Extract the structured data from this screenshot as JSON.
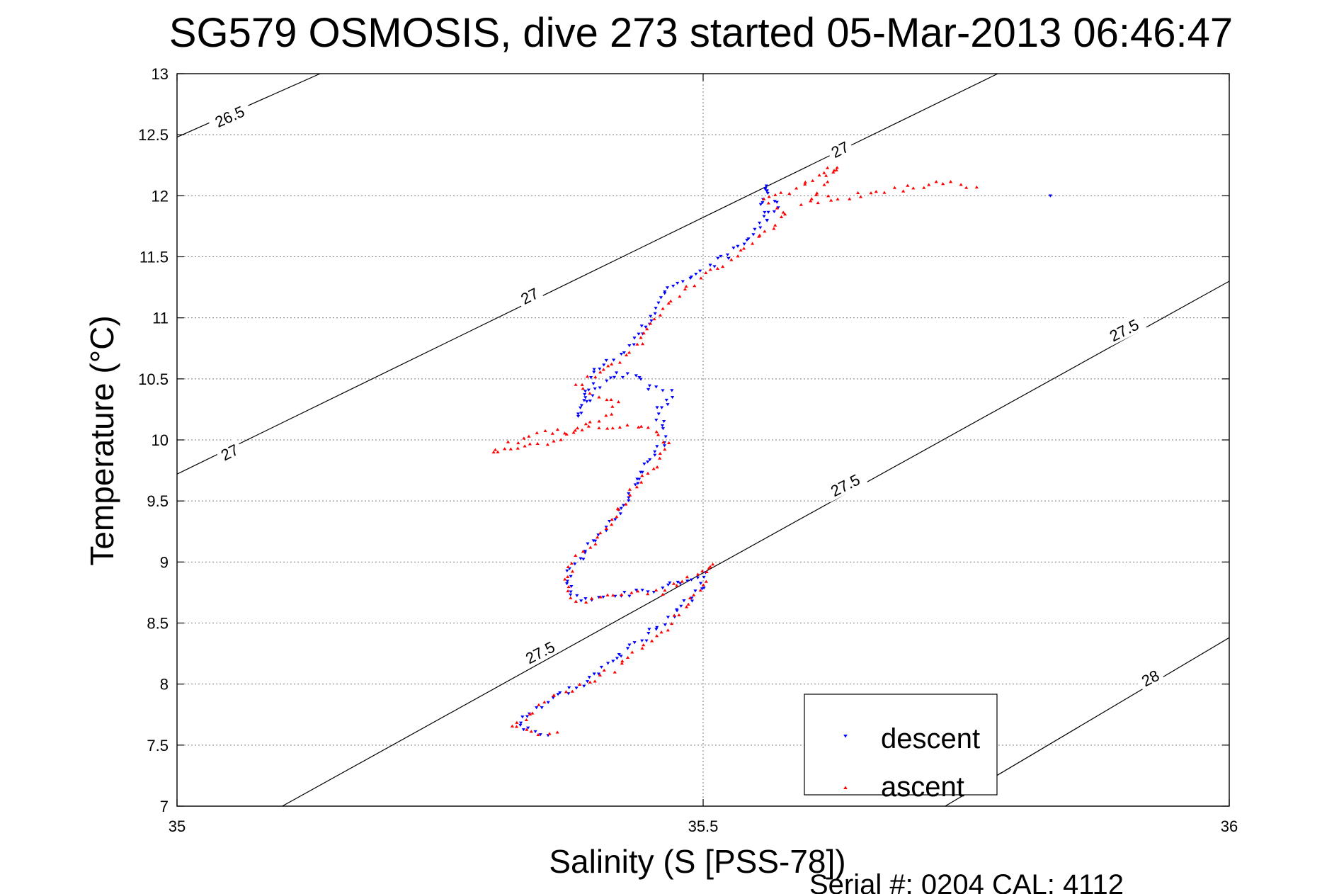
{
  "chart_data": {
    "type": "scatter",
    "title": "SG579 OSMOSIS, dive 273 started 05-Mar-2013 06:46:47",
    "xlabel": "Salinity (S [PSS-78])",
    "ylabel": "Temperature (°C)",
    "xlim": [
      35,
      36
    ],
    "ylim": [
      7,
      13
    ],
    "xticks": [
      "35",
      "35.5",
      "36"
    ],
    "yticks": [
      "7",
      "7.5",
      "8",
      "8.5",
      "9",
      "9.5",
      "10",
      "10.5",
      "11",
      "11.5",
      "12",
      "12.5",
      "13"
    ],
    "grid": true,
    "legend_position": "bottom-right",
    "footer": "Serial #: 0204  CAL: 4112",
    "contours": [
      {
        "label": "26.5",
        "points": [
          [
            35.0,
            12.48
          ],
          [
            35.136,
            13.0
          ]
        ],
        "label_at": [
          35.05,
          12.65
        ]
      },
      {
        "label": "27",
        "points": [
          [
            35.0,
            9.72
          ],
          [
            35.78,
            13.0
          ]
        ],
        "label_at": [
          35.05,
          9.9
        ]
      },
      {
        "label": "27",
        "points": [
          [
            35.33,
            11.12
          ],
          [
            35.33,
            11.12
          ]
        ],
        "label_at": [
          35.335,
          11.18
        ]
      },
      {
        "label": "27",
        "points": [
          [
            35.63,
            12.32
          ],
          [
            35.63,
            12.32
          ]
        ],
        "label_at": [
          35.63,
          12.38
        ]
      },
      {
        "label": "27.5",
        "points": [
          [
            35.1,
            7.0
          ],
          [
            36.0,
            11.3
          ]
        ],
        "label_at": [
          35.345,
          8.26
        ]
      },
      {
        "label": "27.5",
        "points": [
          [
            35.64,
            9.63
          ],
          [
            35.64,
            9.63
          ]
        ],
        "label_at": [
          35.635,
          9.63
        ]
      },
      {
        "label": "27.5",
        "points": [
          [
            35.89,
            10.82
          ],
          [
            35.89,
            10.82
          ]
        ],
        "label_at": [
          35.9,
          10.9
        ]
      },
      {
        "label": "28",
        "points": [
          [
            35.73,
            7.0
          ],
          [
            36.0,
            8.38
          ]
        ],
        "label_at": [
          35.925,
          8.05
        ]
      }
    ],
    "series": [
      {
        "name": "descent",
        "color": "#0000ff",
        "marker": "triangle-down",
        "path": [
          [
            35.35,
            7.58
          ],
          [
            35.33,
            7.63
          ],
          [
            35.325,
            7.7
          ],
          [
            35.35,
            7.85
          ],
          [
            35.38,
            7.98
          ],
          [
            35.41,
            8.15
          ],
          [
            35.44,
            8.35
          ],
          [
            35.47,
            8.55
          ],
          [
            35.5,
            8.8
          ],
          [
            35.5,
            8.9
          ],
          [
            35.46,
            8.78
          ],
          [
            35.42,
            8.72
          ],
          [
            35.39,
            8.68
          ],
          [
            35.375,
            8.72
          ],
          [
            35.37,
            8.85
          ],
          [
            35.375,
            8.95
          ],
          [
            35.39,
            9.1
          ],
          [
            35.405,
            9.25
          ],
          [
            35.42,
            9.38
          ],
          [
            35.43,
            9.55
          ],
          [
            35.44,
            9.7
          ],
          [
            35.45,
            9.85
          ],
          [
            35.465,
            10.0
          ],
          [
            35.46,
            10.15
          ],
          [
            35.455,
            10.25
          ],
          [
            35.465,
            10.3
          ],
          [
            35.47,
            10.4
          ],
          [
            35.45,
            10.42
          ],
          [
            35.44,
            10.5
          ],
          [
            35.42,
            10.55
          ],
          [
            35.4,
            10.4
          ],
          [
            35.39,
            10.3
          ],
          [
            35.38,
            10.2
          ],
          [
            35.4,
            10.6
          ],
          [
            35.42,
            10.7
          ],
          [
            35.44,
            10.85
          ],
          [
            35.45,
            11.0
          ],
          [
            35.46,
            11.15
          ],
          [
            35.475,
            11.3
          ],
          [
            35.5,
            11.4
          ],
          [
            35.53,
            11.55
          ],
          [
            35.55,
            11.7
          ],
          [
            35.56,
            11.85
          ],
          [
            35.555,
            11.95
          ],
          [
            35.56,
            12.05
          ],
          [
            35.56,
            12.08
          ],
          [
            35.57,
            11.9
          ],
          [
            35.555,
            11.8
          ],
          [
            35.83,
            12.0
          ]
        ],
        "n_points": 220
      },
      {
        "name": "ascent",
        "color": "#ff0000",
        "marker": "triangle-up",
        "path": [
          [
            35.36,
            7.6
          ],
          [
            35.33,
            7.62
          ],
          [
            35.32,
            7.65
          ],
          [
            35.335,
            7.75
          ],
          [
            35.36,
            7.92
          ],
          [
            35.39,
            8.0
          ],
          [
            35.42,
            8.15
          ],
          [
            35.45,
            8.35
          ],
          [
            35.47,
            8.5
          ],
          [
            35.49,
            8.7
          ],
          [
            35.51,
            8.98
          ],
          [
            35.46,
            8.75
          ],
          [
            35.4,
            8.72
          ],
          [
            35.38,
            8.68
          ],
          [
            35.37,
            8.8
          ],
          [
            35.375,
            9.0
          ],
          [
            35.395,
            9.15
          ],
          [
            35.41,
            9.3
          ],
          [
            35.42,
            9.45
          ],
          [
            35.44,
            9.65
          ],
          [
            35.455,
            9.8
          ],
          [
            35.465,
            10.0
          ],
          [
            35.45,
            10.1
          ],
          [
            35.4,
            10.1
          ],
          [
            35.35,
            10.05
          ],
          [
            35.31,
            9.95
          ],
          [
            35.3,
            9.9
          ],
          [
            35.35,
            9.98
          ],
          [
            35.4,
            10.15
          ],
          [
            35.42,
            10.3
          ],
          [
            35.38,
            10.45
          ],
          [
            35.4,
            10.55
          ],
          [
            35.42,
            10.65
          ],
          [
            35.44,
            10.8
          ],
          [
            35.455,
            11.0
          ],
          [
            35.47,
            11.15
          ],
          [
            35.5,
            11.35
          ],
          [
            35.53,
            11.5
          ],
          [
            35.55,
            11.65
          ],
          [
            35.565,
            11.75
          ],
          [
            35.58,
            11.85
          ],
          [
            35.56,
            11.95
          ],
          [
            35.57,
            12.0
          ],
          [
            35.59,
            12.05
          ],
          [
            35.61,
            12.15
          ],
          [
            35.62,
            12.22
          ],
          [
            35.63,
            12.25
          ],
          [
            35.605,
            12.0
          ],
          [
            35.595,
            11.95
          ],
          [
            35.73,
            12.1
          ],
          [
            35.76,
            12.07
          ]
        ],
        "n_points": 240
      }
    ]
  }
}
